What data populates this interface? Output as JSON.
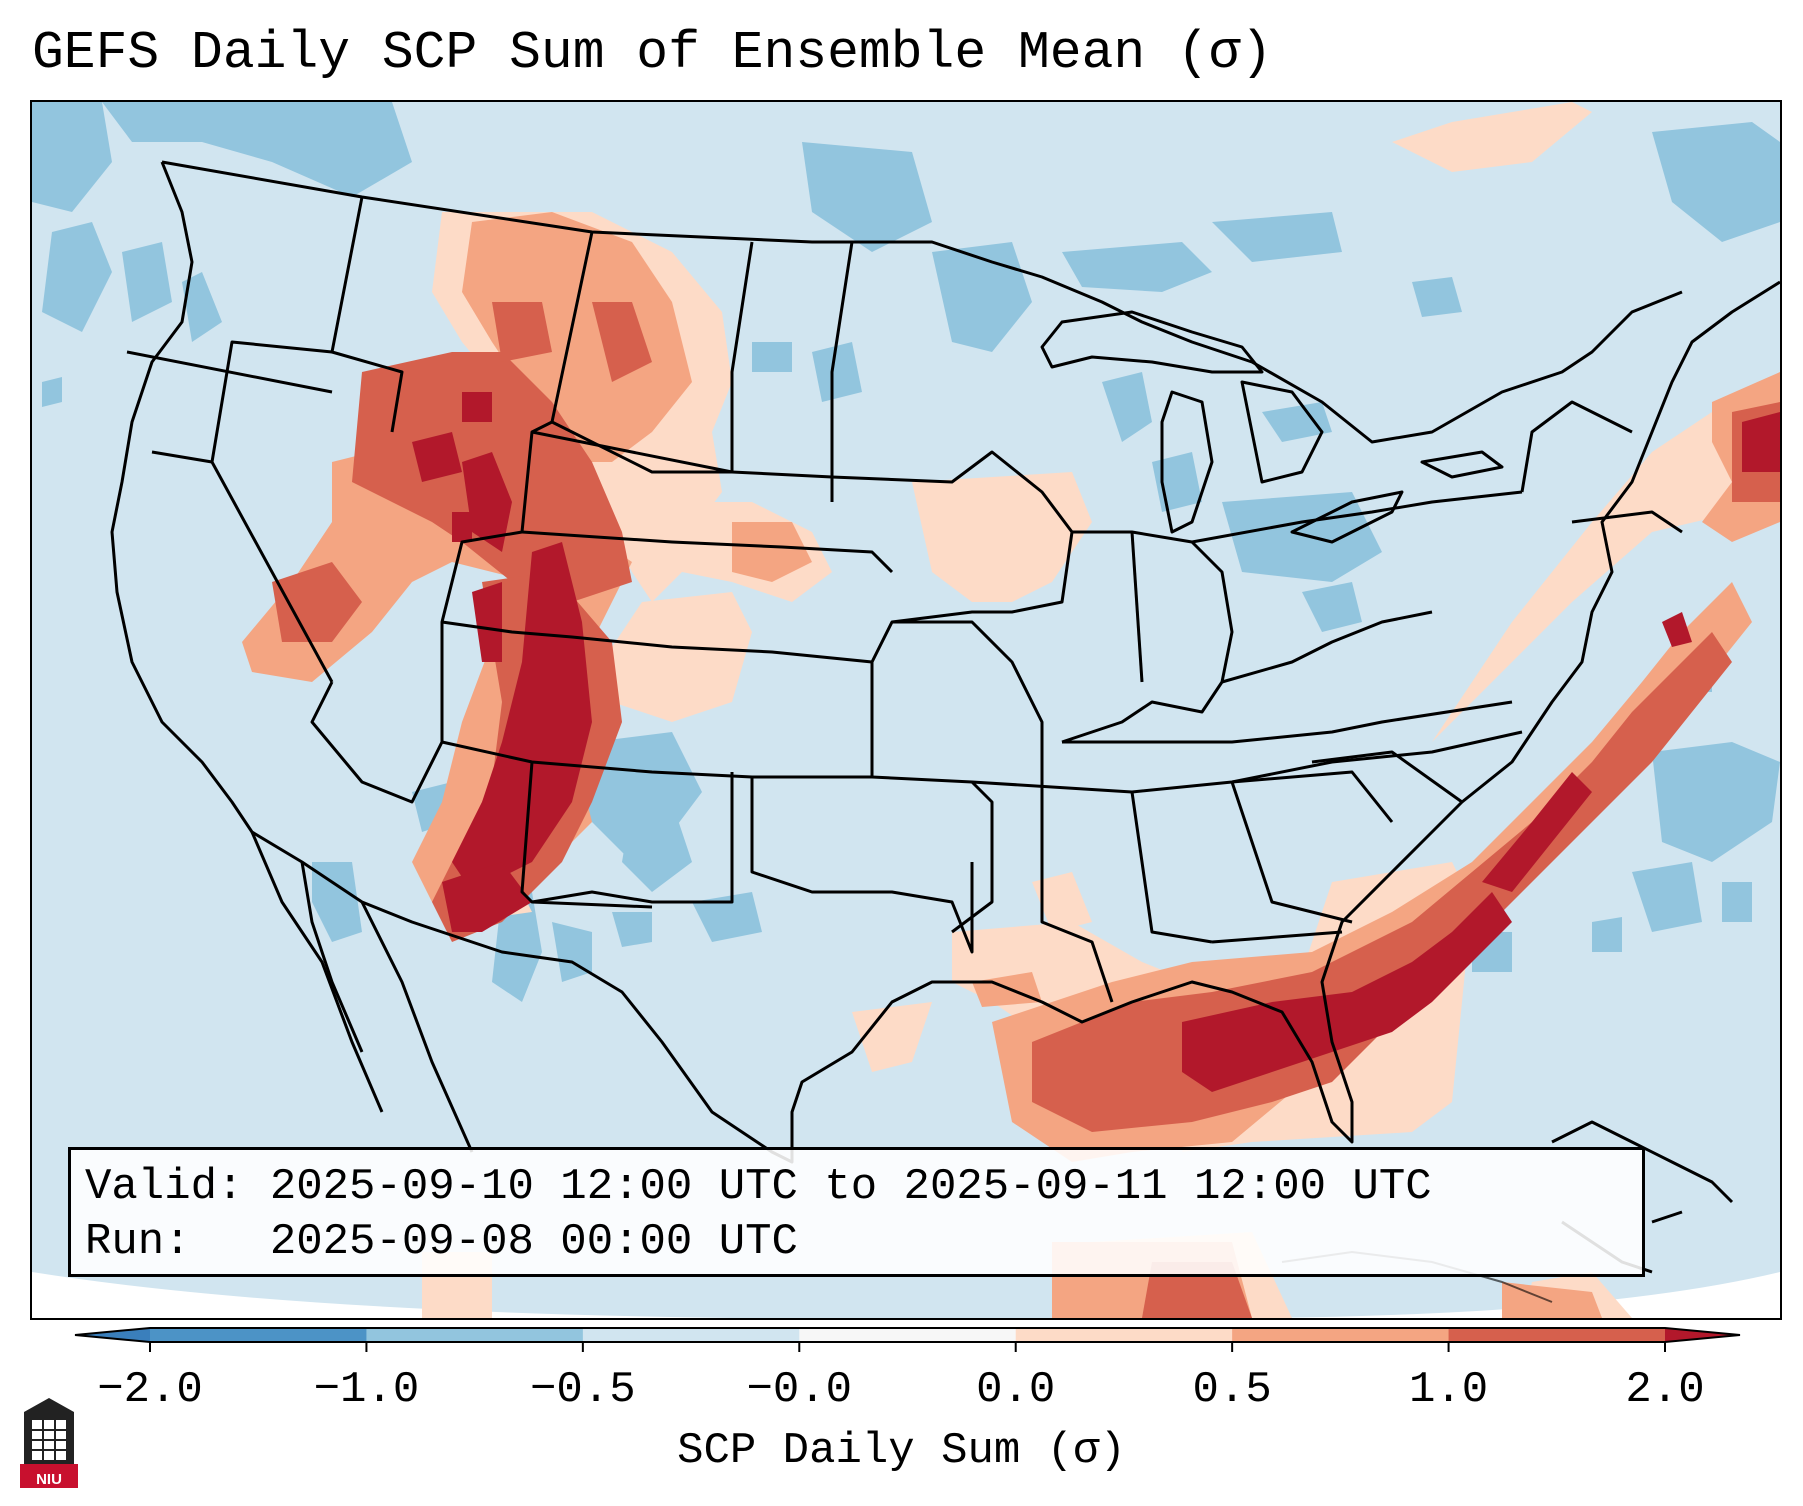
{
  "title": "GEFS Daily SCP Sum of Ensemble Mean (σ)",
  "info": {
    "valid_label": "Valid:",
    "valid_value": "2025-09-10 12:00 UTC to 2025-09-11 12:00 UTC",
    "run_label": "Run:",
    "run_value": "2025-09-08 00:00 UTC"
  },
  "colorbar": {
    "label": "SCP Daily Sum (σ)",
    "ticks": [
      "−2.0",
      "−1.0",
      "−0.5",
      "−0.0",
      "0.0",
      "0.5",
      "1.0",
      "2.0"
    ],
    "colors": {
      "below": "#3a7fbc",
      "bins": [
        "#4c93c6",
        "#92c5de",
        "#d1e5f0",
        "#f7f7f7",
        "#fddbc7",
        "#f4a582",
        "#d6604d"
      ],
      "above": "#b2182b"
    }
  },
  "map": {
    "background_value_color": "#d1e5f0",
    "ocean_outside_color": "#ffffff",
    "border_color": "#000000"
  },
  "logo": {
    "text": "NIU"
  }
}
